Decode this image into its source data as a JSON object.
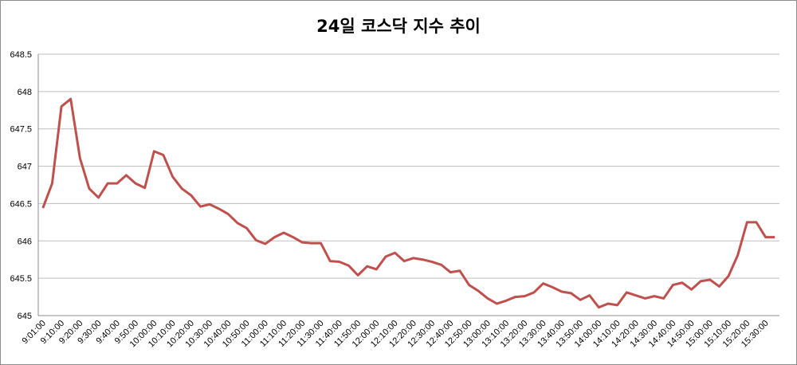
{
  "chart_data": {
    "type": "line",
    "title": "24일 코스닥 지수 추이",
    "categories": [
      "9:01:00",
      null,
      "9:10:00",
      null,
      "9:20:00",
      null,
      "9:30:00",
      null,
      "9:40:00",
      null,
      "9:50:00",
      null,
      "10:00:00",
      null,
      "10:10:00",
      null,
      "10:20:00",
      null,
      "10:30:00",
      null,
      "10:40:00",
      null,
      "10:50:00",
      null,
      "11:00:00",
      null,
      "11:10:00",
      null,
      "11:20:00",
      null,
      "11:30:00",
      null,
      "11:40:00",
      null,
      "11:50:00",
      null,
      "12:00:00",
      null,
      "12:10:00",
      null,
      "12:20:00",
      null,
      "12:30:00",
      null,
      "12:40:00",
      null,
      "12:50:00",
      null,
      "13:00:00",
      null,
      "13:10:00",
      null,
      "13:20:00",
      null,
      "13:30:00",
      null,
      "13:40:00",
      null,
      "13:50:00",
      null,
      "14:00:00",
      null,
      "14:10:00",
      null,
      "14:20:00",
      null,
      "14:30:00",
      null,
      "14:40:00",
      null,
      "14:50:00",
      null,
      "15:00:00",
      null,
      "15:10:00",
      null,
      "15:20:00",
      null,
      "15:30:00",
      null
    ],
    "values": [
      646.44,
      646.77,
      647.8,
      647.9,
      647.11,
      646.7,
      646.58,
      646.77,
      646.77,
      646.88,
      646.77,
      646.71,
      647.2,
      647.15,
      646.86,
      646.7,
      646.61,
      646.46,
      646.49,
      646.43,
      646.36,
      646.24,
      646.17,
      646.01,
      645.96,
      646.05,
      646.11,
      646.05,
      645.98,
      645.97,
      645.97,
      645.73,
      645.72,
      645.67,
      645.54,
      645.66,
      645.62,
      645.79,
      645.84,
      645.73,
      645.77,
      645.75,
      645.72,
      645.68,
      645.58,
      645.6,
      645.41,
      645.33,
      645.23,
      645.16,
      645.2,
      645.25,
      645.26,
      645.31,
      645.43,
      645.38,
      645.32,
      645.3,
      645.21,
      645.27,
      645.11,
      645.16,
      645.14,
      645.31,
      645.27,
      645.23,
      645.26,
      645.23,
      645.41,
      645.44,
      645.35,
      645.46,
      645.48,
      645.39,
      645.53,
      645.81,
      646.25,
      646.25,
      646.05,
      646.05
    ],
    "color": "#c0504d",
    "ylim": [
      645,
      648.5
    ],
    "yticks": [
      645,
      645.5,
      646,
      646.5,
      647,
      647.5,
      648,
      648.5
    ],
    "grid": true
  }
}
